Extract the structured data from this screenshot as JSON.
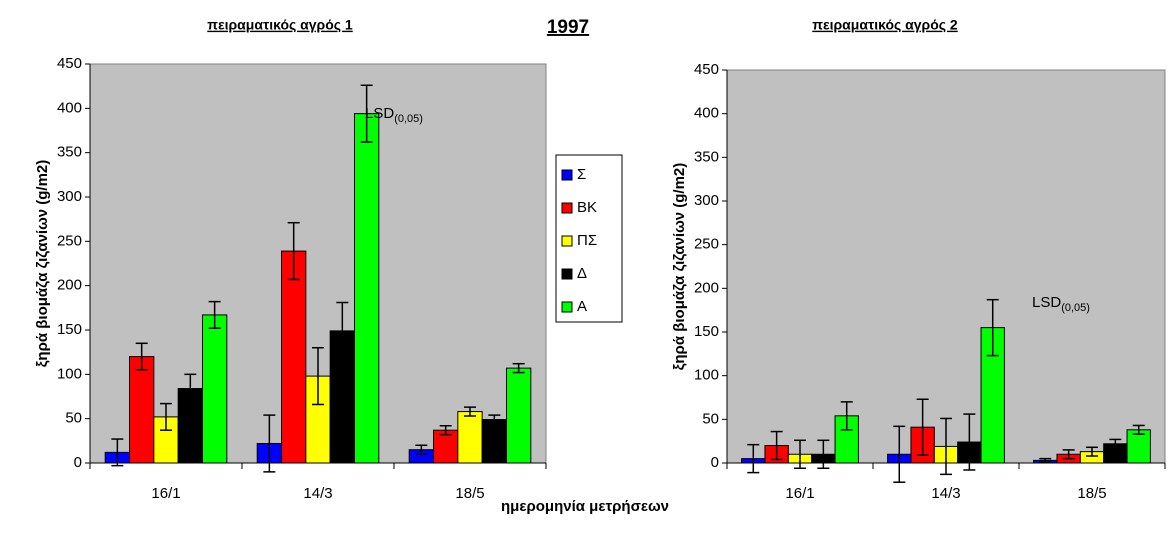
{
  "title": "1997",
  "xlabel": "ημερομηνία μετρήσεων",
  "series": [
    {
      "name": "Σ",
      "color": "#0000ff"
    },
    {
      "name": "ΒΚ",
      "color": "#ff0000"
    },
    {
      "name": "ΠΣ",
      "color": "#ffff00"
    },
    {
      "name": "Δ",
      "color": "#000000"
    },
    {
      "name": "Α",
      "color": "#00ff00"
    }
  ],
  "chart_data": [
    {
      "type": "bar",
      "title": "πειραματικός αγρός 1",
      "ylabel": "ξηρά βιομάζα ζιζανίων (g/m2)",
      "categories": [
        "16/1",
        "14/3",
        "18/5"
      ],
      "annotation": {
        "text": "LSD",
        "subscript": "(0,05)"
      },
      "ylim": [
        0,
        450
      ],
      "yticks": [
        0,
        50,
        100,
        150,
        200,
        250,
        300,
        350,
        400,
        450
      ],
      "series": [
        {
          "values": [
            12,
            22,
            15
          ],
          "errors": [
            15,
            32,
            5
          ]
        },
        {
          "values": [
            120,
            239,
            37
          ],
          "errors": [
            15,
            32,
            5
          ]
        },
        {
          "values": [
            52,
            98,
            58
          ],
          "errors": [
            15,
            32,
            5
          ]
        },
        {
          "values": [
            84,
            149,
            49
          ],
          "errors": [
            16,
            32,
            5
          ]
        },
        {
          "values": [
            167,
            394,
            107
          ],
          "errors": [
            15,
            32,
            5
          ]
        }
      ]
    },
    {
      "type": "bar",
      "title": "πειραματικός αγρός 2",
      "ylabel": "ξηρά βιομάζα ζιζανίων (g/m2)",
      "categories": [
        "16/1",
        "14/3",
        "18/5"
      ],
      "annotation": {
        "text": "LSD",
        "subscript": "(0,05)"
      },
      "ylim": [
        0,
        450
      ],
      "yticks": [
        0,
        50,
        100,
        150,
        200,
        250,
        300,
        350,
        400,
        450
      ],
      "series": [
        {
          "values": [
            5,
            10,
            3
          ],
          "errors": [
            16,
            32,
            2
          ]
        },
        {
          "values": [
            20,
            41,
            10
          ],
          "errors": [
            16,
            32,
            5
          ]
        },
        {
          "values": [
            10,
            19,
            13
          ],
          "errors": [
            16,
            32,
            5
          ]
        },
        {
          "values": [
            10,
            24,
            22
          ],
          "errors": [
            16,
            32,
            5
          ]
        },
        {
          "values": [
            54,
            155,
            38
          ],
          "errors": [
            16,
            32,
            5
          ]
        }
      ]
    }
  ]
}
